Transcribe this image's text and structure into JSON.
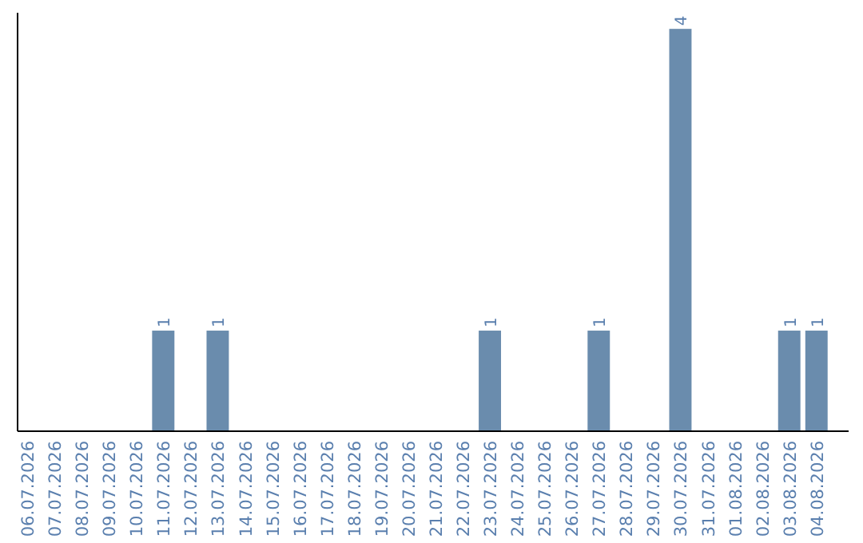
{
  "chart_data": {
    "type": "bar",
    "categories": [
      "06.07.2026",
      "07.07.2026",
      "08.07.2026",
      "09.07.2026",
      "10.07.2026",
      "11.07.2026",
      "12.07.2026",
      "13.07.2026",
      "14.07.2026",
      "15.07.2026",
      "16.07.2026",
      "17.07.2026",
      "18.07.2026",
      "19.07.2026",
      "20.07.2026",
      "21.07.2026",
      "22.07.2026",
      "23.07.2026",
      "24.07.2026",
      "25.07.2026",
      "26.07.2026",
      "27.07.2026",
      "28.07.2026",
      "29.07.2026",
      "30.07.2026",
      "31.07.2026",
      "01.08.2026",
      "02.08.2026",
      "03.08.2026",
      "04.08.2026"
    ],
    "values": [
      0,
      0,
      0,
      0,
      0,
      1,
      0,
      1,
      0,
      0,
      0,
      0,
      0,
      0,
      0,
      0,
      0,
      1,
      0,
      0,
      0,
      1,
      0,
      0,
      4,
      0,
      0,
      0,
      1,
      1
    ],
    "value_labels": [
      null,
      null,
      null,
      null,
      null,
      "1",
      null,
      "1",
      null,
      null,
      null,
      null,
      null,
      null,
      null,
      null,
      null,
      "1",
      null,
      null,
      null,
      "1",
      null,
      null,
      "4",
      null,
      null,
      null,
      "1",
      "1"
    ],
    "color": "#6a8cad",
    "ylim": [
      0,
      4.16
    ],
    "tick_labels": "x"
  }
}
